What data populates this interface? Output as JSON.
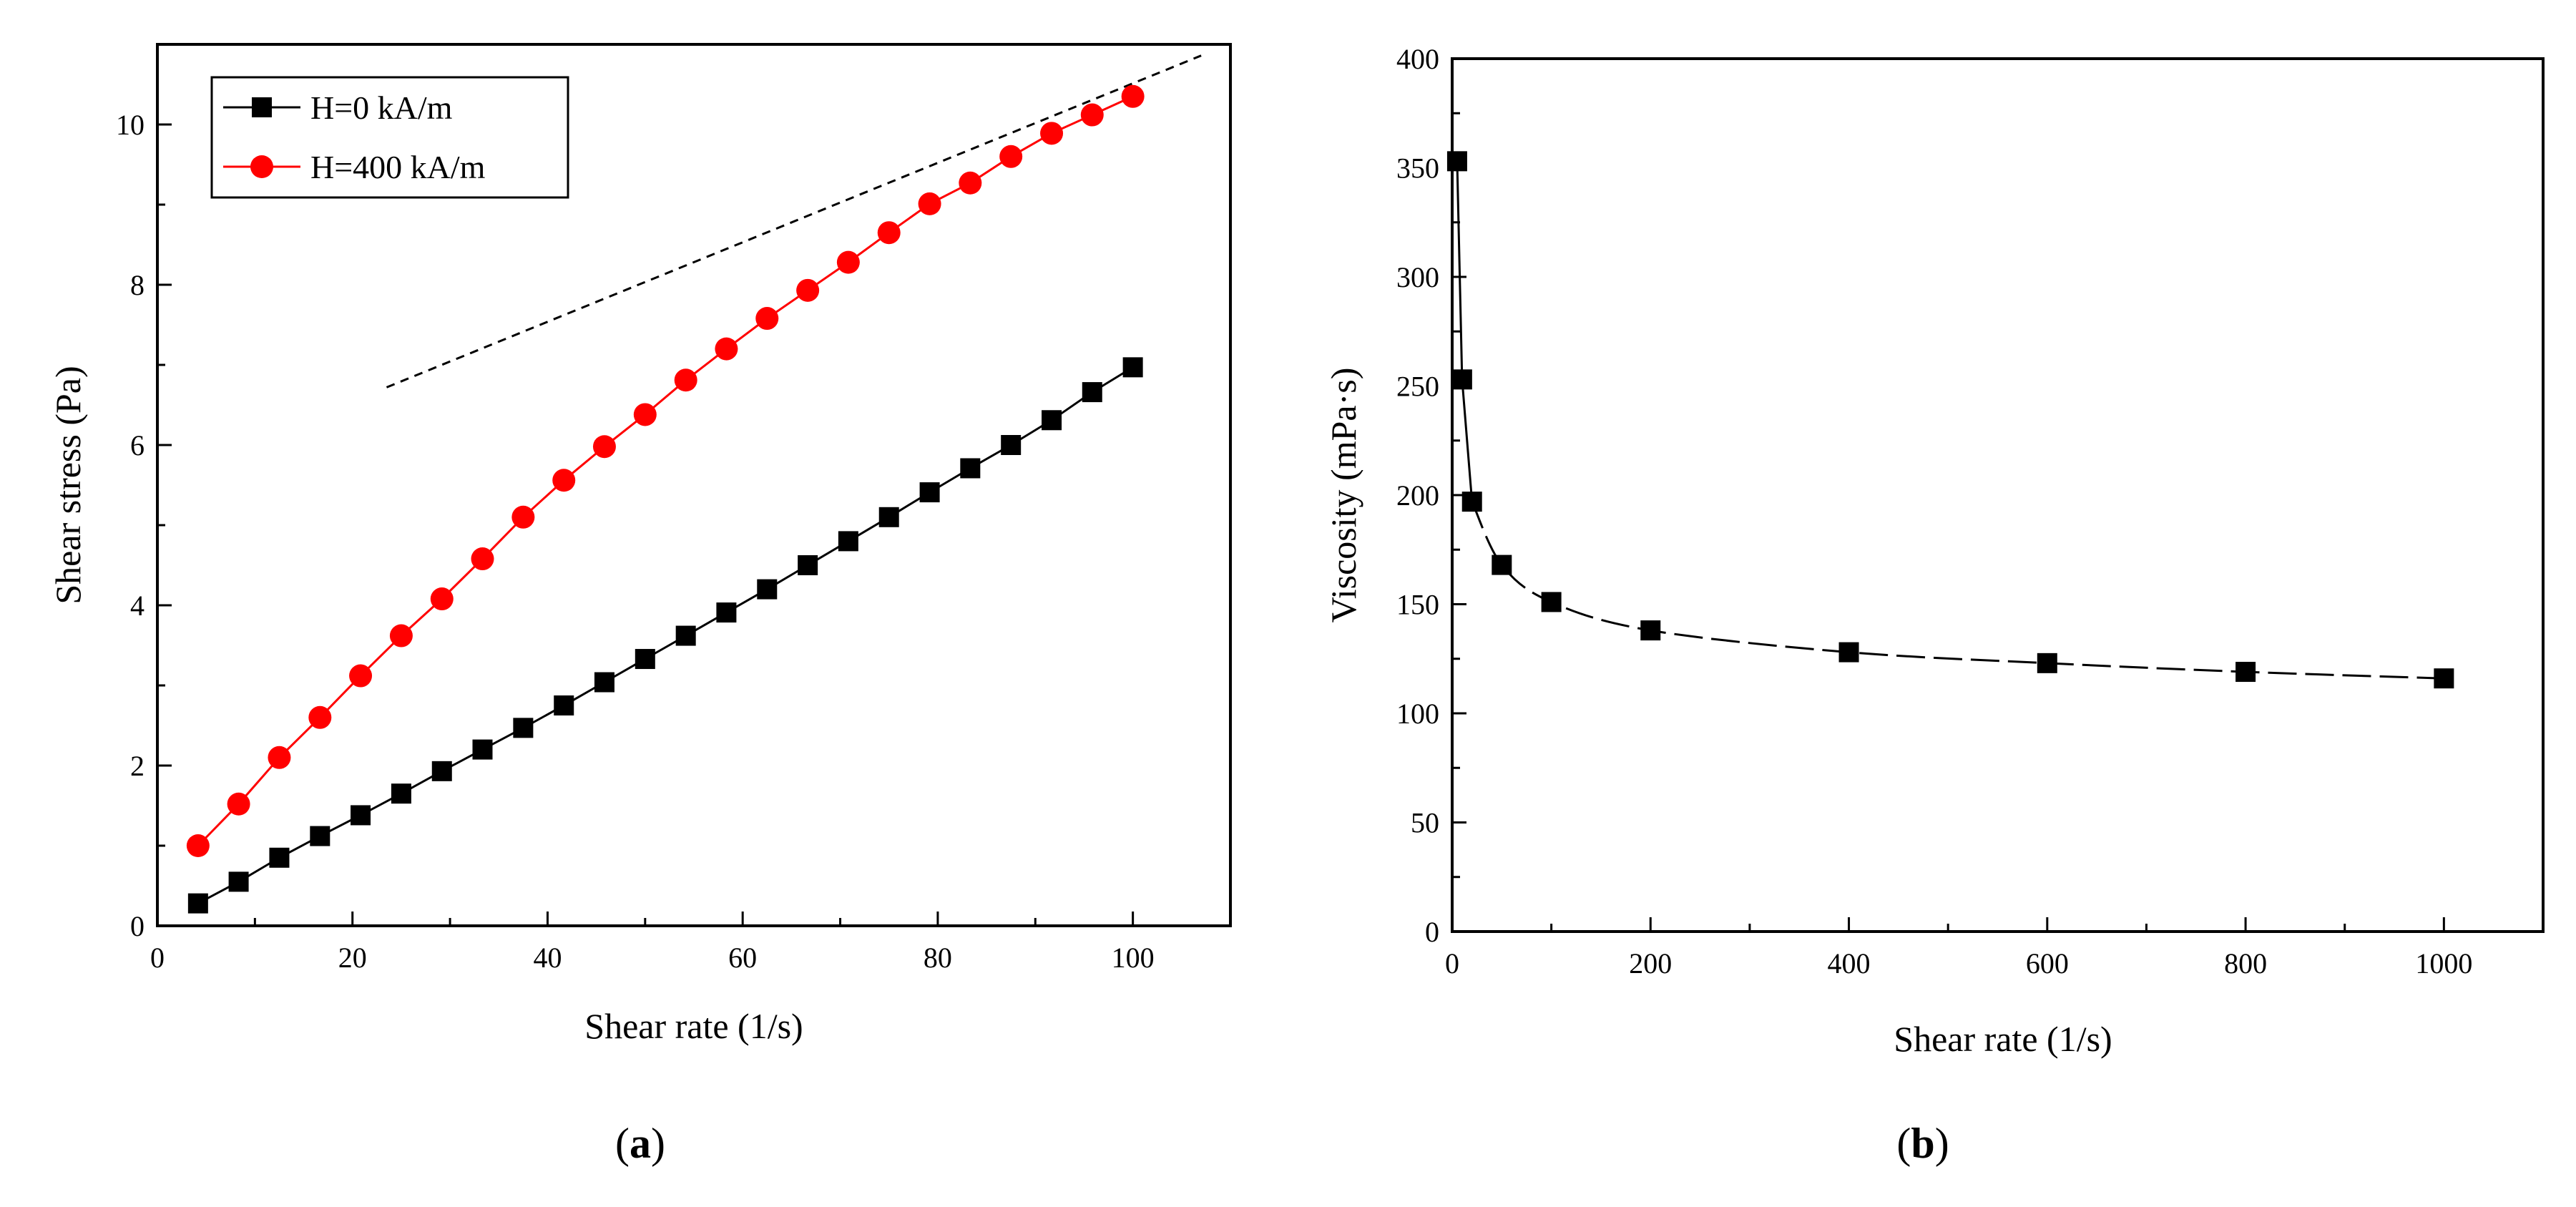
{
  "chart_data": [
    {
      "panel": "a",
      "type": "line",
      "caption": "(a)",
      "caption_letter": "a",
      "xlabel": "Shear rate (1/s)",
      "ylabel": "Shear stress (Pa)",
      "xlim": [
        0,
        110
      ],
      "ylim": [
        0,
        11
      ],
      "xticks": [
        0,
        20,
        40,
        60,
        80,
        100
      ],
      "yticks": [
        0,
        2,
        4,
        6,
        8,
        10
      ],
      "legend_position": "top-left",
      "series": [
        {
          "name": "H=0 kA/m",
          "color": "#000000",
          "marker": "square",
          "x": [
            4.17,
            8.33,
            12.5,
            16.67,
            20.83,
            25.0,
            29.17,
            33.33,
            37.5,
            41.67,
            45.83,
            50.0,
            54.17,
            58.33,
            62.5,
            66.67,
            70.83,
            75.0,
            79.17,
            83.33,
            87.5,
            91.67,
            95.83,
            100.0
          ],
          "y": [
            0.28,
            0.55,
            0.85,
            1.12,
            1.38,
            1.65,
            1.93,
            2.2,
            2.47,
            2.75,
            3.04,
            3.33,
            3.62,
            3.91,
            4.2,
            4.5,
            4.8,
            5.1,
            5.41,
            5.71,
            6.0,
            6.31,
            6.66,
            6.97
          ]
        },
        {
          "name": "H=400 kA/m",
          "color": "#ff0000",
          "marker": "circle",
          "x": [
            4.17,
            8.33,
            12.5,
            16.67,
            20.83,
            25.0,
            29.17,
            33.33,
            37.5,
            41.67,
            45.83,
            50.0,
            54.17,
            58.33,
            62.5,
            66.67,
            70.83,
            75.0,
            79.17,
            83.33,
            87.5,
            91.67,
            95.83,
            100.0
          ],
          "y": [
            1.0,
            1.52,
            2.1,
            2.6,
            3.12,
            3.62,
            4.08,
            4.58,
            5.1,
            5.56,
            5.98,
            6.38,
            6.81,
            7.2,
            7.58,
            7.93,
            8.28,
            8.65,
            9.01,
            9.27,
            9.6,
            9.89,
            10.12,
            10.35
          ]
        }
      ],
      "reference_line": {
        "style": "dashed",
        "x": [
          23.5,
          107
        ],
        "y": [
          6.72,
          10.86
        ]
      }
    },
    {
      "panel": "b",
      "type": "line",
      "caption": "(b)",
      "caption_letter": "b",
      "xlabel": "Shear rate (1/s)",
      "ylabel": "Viscosity (mPa·s)",
      "xlim": [
        0,
        1100
      ],
      "ylim": [
        0,
        400
      ],
      "xticks": [
        0,
        200,
        400,
        600,
        800,
        1000
      ],
      "yticks": [
        0,
        50,
        100,
        150,
        200,
        250,
        300,
        350,
        400
      ],
      "series": [
        {
          "name": "Viscosity",
          "color": "#000000",
          "marker": "square",
          "line_style": "dashed",
          "x": [
            5,
            10,
            20,
            50,
            100,
            200,
            400,
            600,
            800,
            1000
          ],
          "y": [
            353,
            253,
            197,
            168,
            151,
            138,
            128,
            123,
            119,
            116
          ]
        }
      ]
    }
  ]
}
